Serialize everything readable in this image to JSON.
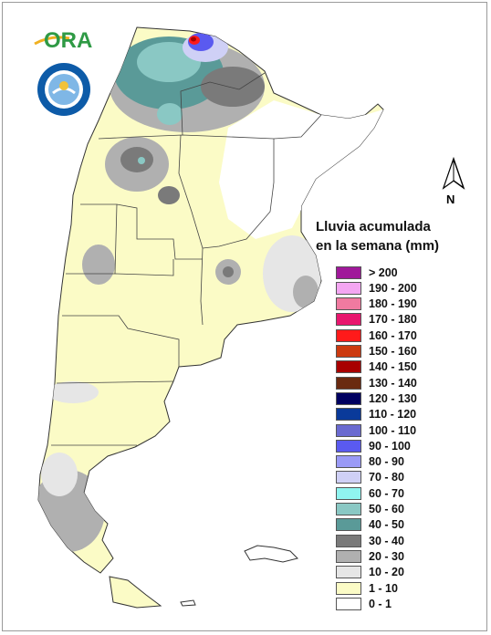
{
  "logo": {
    "text": "ORA"
  },
  "seal": {
    "text": "SERVICIO METEOROLÓGICO NACIONAL · ARGENTINA"
  },
  "north_arrow": {
    "label": "N"
  },
  "legend": {
    "title_line1": "Lluvia acumulada",
    "title_line2": "en la semana (mm)",
    "items": [
      {
        "label": "> 200",
        "color": "#a0189a"
      },
      {
        "label": "190 - 200",
        "color": "#f4a6f2"
      },
      {
        "label": "180 - 190",
        "color": "#f07aa0"
      },
      {
        "label": "170 - 180",
        "color": "#e8166e"
      },
      {
        "label": "160 - 170",
        "color": "#ff1a1a"
      },
      {
        "label": "150 - 160",
        "color": "#cc3a10"
      },
      {
        "label": "140 - 150",
        "color": "#a80000"
      },
      {
        "label": "130 - 140",
        "color": "#6a2a10"
      },
      {
        "label": "120 - 130",
        "color": "#000060"
      },
      {
        "label": "110 - 120",
        "color": "#0a3a9a"
      },
      {
        "label": "100 - 110",
        "color": "#6a6ad0"
      },
      {
        "label": "90 - 100",
        "color": "#5a5af0"
      },
      {
        "label": "80 - 90",
        "color": "#9a9af6"
      },
      {
        "label": "70 - 80",
        "color": "#cfd0f6"
      },
      {
        "label": "60 - 70",
        "color": "#90f4f0"
      },
      {
        "label": "50 - 60",
        "color": "#8ac8c4"
      },
      {
        "label": "40 - 50",
        "color": "#5a9a98"
      },
      {
        "label": "30 - 40",
        "color": "#7a7a7a"
      },
      {
        "label": "20 - 30",
        "color": "#b0b0b0"
      },
      {
        "label": "10 - 20",
        "color": "#e6e6e6"
      },
      {
        "label": "1 - 10",
        "color": "#fbfbc6"
      },
      {
        "label": "0 - 1",
        "color": "#ffffff"
      }
    ]
  }
}
